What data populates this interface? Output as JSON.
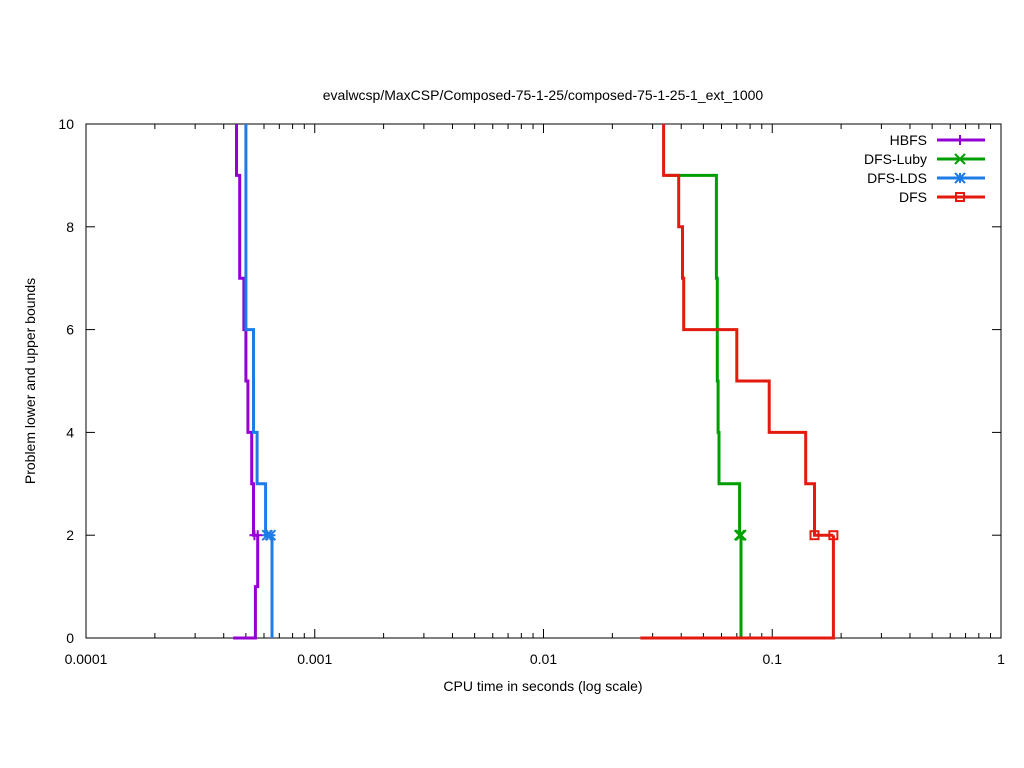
{
  "chart_data": {
    "type": "line",
    "title": "evalwcsp/MaxCSP/Composed-75-1-25/composed-75-1-25-1_ext_1000",
    "xlabel": "CPU time in seconds (log scale)",
    "ylabel": "Problem lower and upper bounds",
    "xscale": "log",
    "xlim": [
      0.0001,
      1
    ],
    "ylim": [
      0,
      10
    ],
    "x_ticks": [
      {
        "value": 0.0001,
        "label": "0.0001"
      },
      {
        "value": 0.001,
        "label": "0.001"
      },
      {
        "value": 0.01,
        "label": "0.01"
      },
      {
        "value": 0.1,
        "label": "0.1"
      },
      {
        "value": 1,
        "label": "1"
      }
    ],
    "y_ticks": [
      {
        "value": 0,
        "label": "0"
      },
      {
        "value": 2,
        "label": "2"
      },
      {
        "value": 4,
        "label": "4"
      },
      {
        "value": 6,
        "label": "6"
      },
      {
        "value": 8,
        "label": "8"
      },
      {
        "value": 10,
        "label": "10"
      }
    ],
    "legend_position": "top-right",
    "grid": false,
    "series": [
      {
        "name": "HBFS",
        "color": "#9400d3",
        "marker": "plus",
        "upper": [
          [
            0.000455,
            10
          ],
          [
            0.000455,
            9
          ],
          [
            0.00047,
            9
          ],
          [
            0.00047,
            7
          ],
          [
            0.00049,
            7
          ],
          [
            0.00049,
            6
          ],
          [
            0.0005,
            6
          ],
          [
            0.0005,
            5
          ],
          [
            0.00051,
            5
          ],
          [
            0.00051,
            4
          ],
          [
            0.00053,
            4
          ],
          [
            0.00053,
            3
          ],
          [
            0.00054,
            3
          ],
          [
            0.00054,
            2
          ],
          [
            0.000563,
            2
          ]
        ],
        "lower": [
          [
            0.00044,
            0
          ],
          [
            0.00055,
            0
          ],
          [
            0.00055,
            1
          ],
          [
            0.000563,
            1
          ],
          [
            0.000563,
            2
          ]
        ],
        "markers": [
          [
            0.000545,
            2
          ],
          [
            0.000563,
            2
          ]
        ]
      },
      {
        "name": "DFS-Luby",
        "color": "#009e00",
        "marker": "x",
        "upper": [
          [
            0.0345,
            9
          ],
          [
            0.057,
            9
          ],
          [
            0.057,
            7
          ],
          [
            0.0575,
            7
          ],
          [
            0.0575,
            5
          ],
          [
            0.058,
            5
          ],
          [
            0.058,
            4
          ],
          [
            0.0585,
            4
          ],
          [
            0.0585,
            3
          ],
          [
            0.072,
            3
          ],
          [
            0.072,
            2
          ]
        ],
        "lower": [
          [
            0.073,
            0
          ],
          [
            0.073,
            2
          ]
        ],
        "markers": [
          [
            0.072,
            2
          ],
          [
            0.073,
            2
          ]
        ]
      },
      {
        "name": "DFS-LDS",
        "color": "#1e7ce8",
        "marker": "star",
        "upper": [
          [
            0.0005,
            10
          ],
          [
            0.0005,
            6
          ],
          [
            0.00054,
            6
          ],
          [
            0.00054,
            4
          ],
          [
            0.00056,
            4
          ],
          [
            0.00056,
            3
          ],
          [
            0.00061,
            3
          ],
          [
            0.00061,
            2
          ],
          [
            0.00065,
            2
          ]
        ],
        "lower": [
          [
            0.00065,
            0
          ],
          [
            0.00065,
            2
          ]
        ],
        "markers": [
          [
            0.00062,
            2
          ],
          [
            0.00064,
            2
          ]
        ]
      },
      {
        "name": "DFS",
        "color": "#e41a0e",
        "marker": "square",
        "upper": [
          [
            0.0335,
            10
          ],
          [
            0.0335,
            9
          ],
          [
            0.039,
            9
          ],
          [
            0.039,
            8
          ],
          [
            0.0405,
            8
          ],
          [
            0.0405,
            7
          ],
          [
            0.041,
            7
          ],
          [
            0.041,
            6
          ],
          [
            0.07,
            6
          ],
          [
            0.07,
            5
          ],
          [
            0.097,
            5
          ],
          [
            0.097,
            4
          ],
          [
            0.14,
            4
          ],
          [
            0.14,
            3
          ],
          [
            0.153,
            3
          ],
          [
            0.153,
            2
          ],
          [
            0.185,
            2
          ]
        ],
        "lower": [
          [
            0.0265,
            0
          ],
          [
            0.185,
            0
          ],
          [
            0.185,
            2
          ]
        ],
        "markers": [
          [
            0.153,
            2
          ],
          [
            0.185,
            2
          ]
        ]
      }
    ]
  }
}
